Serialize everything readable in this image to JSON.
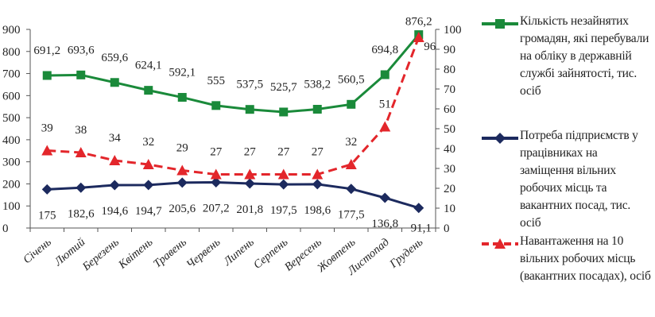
{
  "chart_data": {
    "type": "line",
    "categories": [
      "Січень",
      "Лютий",
      "Березень",
      "Квітень",
      "Травень",
      "Червень",
      "Липень",
      "Серпень",
      "Вересень",
      "Жовтень",
      "Листопад",
      "Грудень"
    ],
    "y_left": {
      "ylim": [
        0,
        900
      ],
      "ticks": [
        "0",
        "100",
        "200",
        "300",
        "400",
        "500",
        "600",
        "700",
        "800",
        "900"
      ]
    },
    "y_right": {
      "ylim": [
        0,
        100
      ],
      "ticks": [
        "0",
        "10",
        "20",
        "30",
        "40",
        "50",
        "60",
        "70",
        "80",
        "90",
        "100"
      ]
    },
    "grid": false,
    "legend_position": "right",
    "series": [
      {
        "name": "Кількість незайнятих громадян, які перебували на обліку в державній службі зайнятості, тис. осіб",
        "axis": "left",
        "color": "#1a8a3a",
        "marker": "square",
        "line_style": "solid",
        "values": [
          691.2,
          693.6,
          659.6,
          624.1,
          592.1,
          555,
          537.5,
          525.7,
          538.2,
          560.5,
          694.8,
          876.2
        ],
        "labels": [
          "691,2",
          "693,6",
          "659,6",
          "624,1",
          "592,1",
          "555",
          "537,5",
          "525,7",
          "538,2",
          "560,5",
          "694,8",
          "876,2"
        ]
      },
      {
        "name": "Потреба підприємств у працівниках на заміщення вільних робочих місць та вакантних посад, тис. осіб",
        "axis": "left",
        "color": "#1c2a5e",
        "marker": "diamond",
        "line_style": "solid",
        "values": [
          175,
          182.6,
          194.6,
          194.7,
          205.6,
          207.2,
          201.8,
          197.5,
          198.6,
          177.5,
          136.8,
          91.1
        ],
        "labels": [
          "175",
          "182,6",
          "194,6",
          "194,7",
          "205,6",
          "207,2",
          "201,8",
          "197,5",
          "198,6",
          "177,5",
          "136,8",
          "91,1"
        ]
      },
      {
        "name": "Навантаження на 10 вільних робочих місць (вакантних посадах), осіб",
        "axis": "right",
        "color": "#e3262b",
        "marker": "triangle",
        "line_style": "dashed",
        "values": [
          39,
          38,
          34,
          32,
          29,
          27,
          27,
          27,
          27,
          32,
          51,
          96
        ],
        "labels": [
          "39",
          "38",
          "34",
          "32",
          "29",
          "27",
          "27",
          "27",
          "27",
          "32",
          "51",
          "96"
        ]
      }
    ]
  }
}
